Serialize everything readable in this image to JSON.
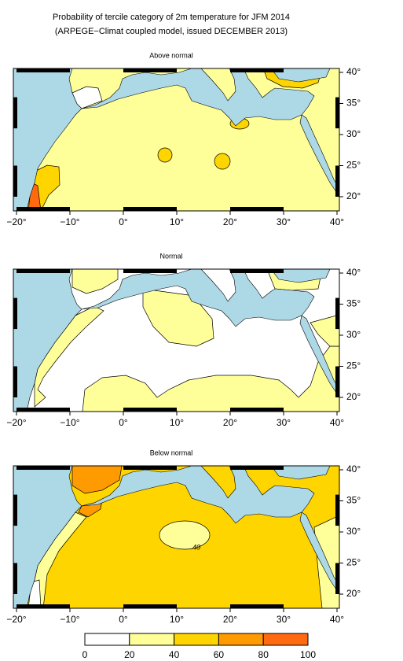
{
  "header": {
    "title": "Probability of tercile category of 2m temperature for JFM 2014",
    "subtitle": "(ARPEGE−Climat coupled model, issued DECEMBER 2013)"
  },
  "panels": [
    {
      "title": "Above normal"
    },
    {
      "title": "Normal"
    },
    {
      "title": "Below normal",
      "contour_label": "40"
    }
  ],
  "axes": {
    "lon_labels": [
      "−20°",
      "−10°",
      "0°",
      "10°",
      "20°",
      "30°",
      "40°"
    ],
    "lat_labels": [
      "40°",
      "35°",
      "30°",
      "25°",
      "20°"
    ]
  },
  "colorbar": {
    "ticks": [
      0,
      20,
      40,
      60,
      80,
      100
    ]
  }
}
